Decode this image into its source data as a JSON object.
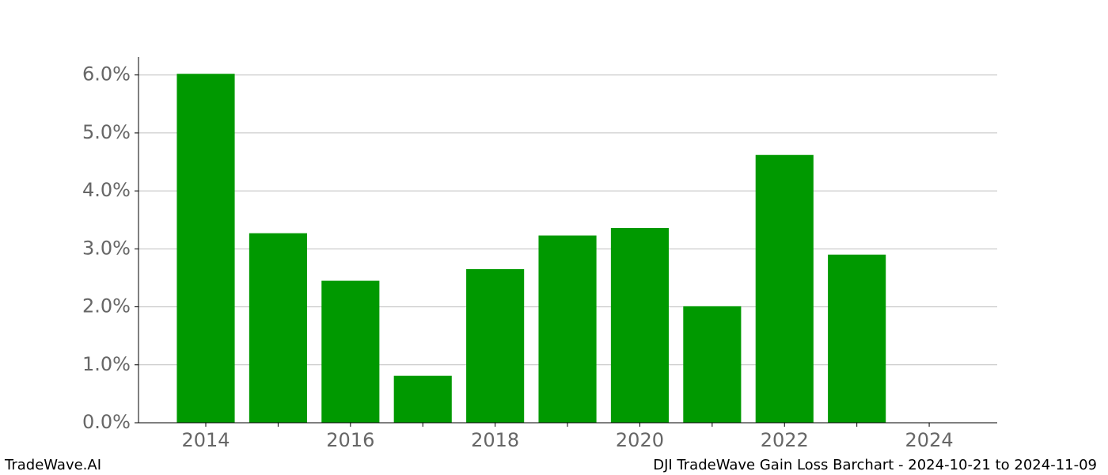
{
  "chart_data": {
    "type": "bar",
    "title": "DJI TradeWave Gain Loss Barchart - 2024-10-21 to 2024-11-09",
    "watermark": "TradeWave.AI",
    "x": [
      2014,
      2015,
      2016,
      2017,
      2018,
      2019,
      2020,
      2021,
      2022,
      2023
    ],
    "values": [
      6.02,
      3.27,
      2.45,
      0.81,
      2.65,
      3.23,
      3.36,
      2.01,
      4.62,
      2.9
    ],
    "color": "#009900",
    "xlim": [
      2013.07,
      2024.94
    ],
    "xticks": [
      2014,
      2016,
      2018,
      2020,
      2022,
      2024
    ],
    "xminorticks": [
      2015,
      2017,
      2019,
      2021,
      2023
    ],
    "ylim": [
      0,
      6.31
    ],
    "yticks": [
      {
        "value": 0,
        "label": "0.0%"
      },
      {
        "value": 1,
        "label": "1.0%"
      },
      {
        "value": 2,
        "label": "2.0%"
      },
      {
        "value": 3,
        "label": "3.0%"
      },
      {
        "value": 4,
        "label": "4.0%"
      },
      {
        "value": 5,
        "label": "5.0%"
      },
      {
        "value": 6,
        "label": "6.0%"
      }
    ],
    "grid": true
  }
}
